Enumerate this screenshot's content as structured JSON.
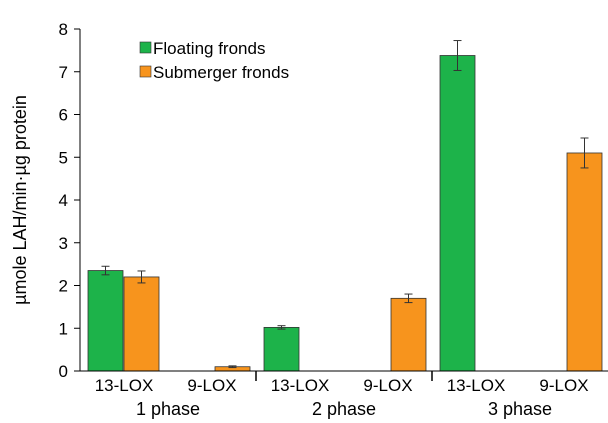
{
  "chart_data": {
    "type": "bar",
    "ylabel": "µmole LAH/min·µg protein",
    "ylim": [
      0,
      8
    ],
    "yticks": [
      0,
      1,
      2,
      3,
      4,
      5,
      6,
      7,
      8
    ],
    "grid": false,
    "legend_position": "top-left",
    "groups": [
      {
        "label": "1 phase",
        "categories": [
          "13-LOX",
          "9-LOX"
        ]
      },
      {
        "label": "2 phase",
        "categories": [
          "13-LOX",
          "9-LOX"
        ]
      },
      {
        "label": "3 phase",
        "categories": [
          "13-LOX",
          "9-LOX"
        ]
      }
    ],
    "categories": [
      "13-LOX",
      "9-LOX",
      "13-LOX",
      "9-LOX",
      "13-LOX",
      "9-LOX"
    ],
    "series": [
      {
        "name": "Floating fronds",
        "color": "#1db34a",
        "values": [
          2.35,
          null,
          1.02,
          null,
          7.38,
          null
        ],
        "errors": [
          0.1,
          null,
          0.04,
          null,
          0.35,
          null
        ]
      },
      {
        "name": "Submerger fronds",
        "color": "#f7941d",
        "values": [
          2.2,
          0.1,
          null,
          1.7,
          null,
          5.1
        ],
        "errors": [
          0.14,
          0.02,
          null,
          0.1,
          null,
          0.35
        ]
      }
    ]
  }
}
